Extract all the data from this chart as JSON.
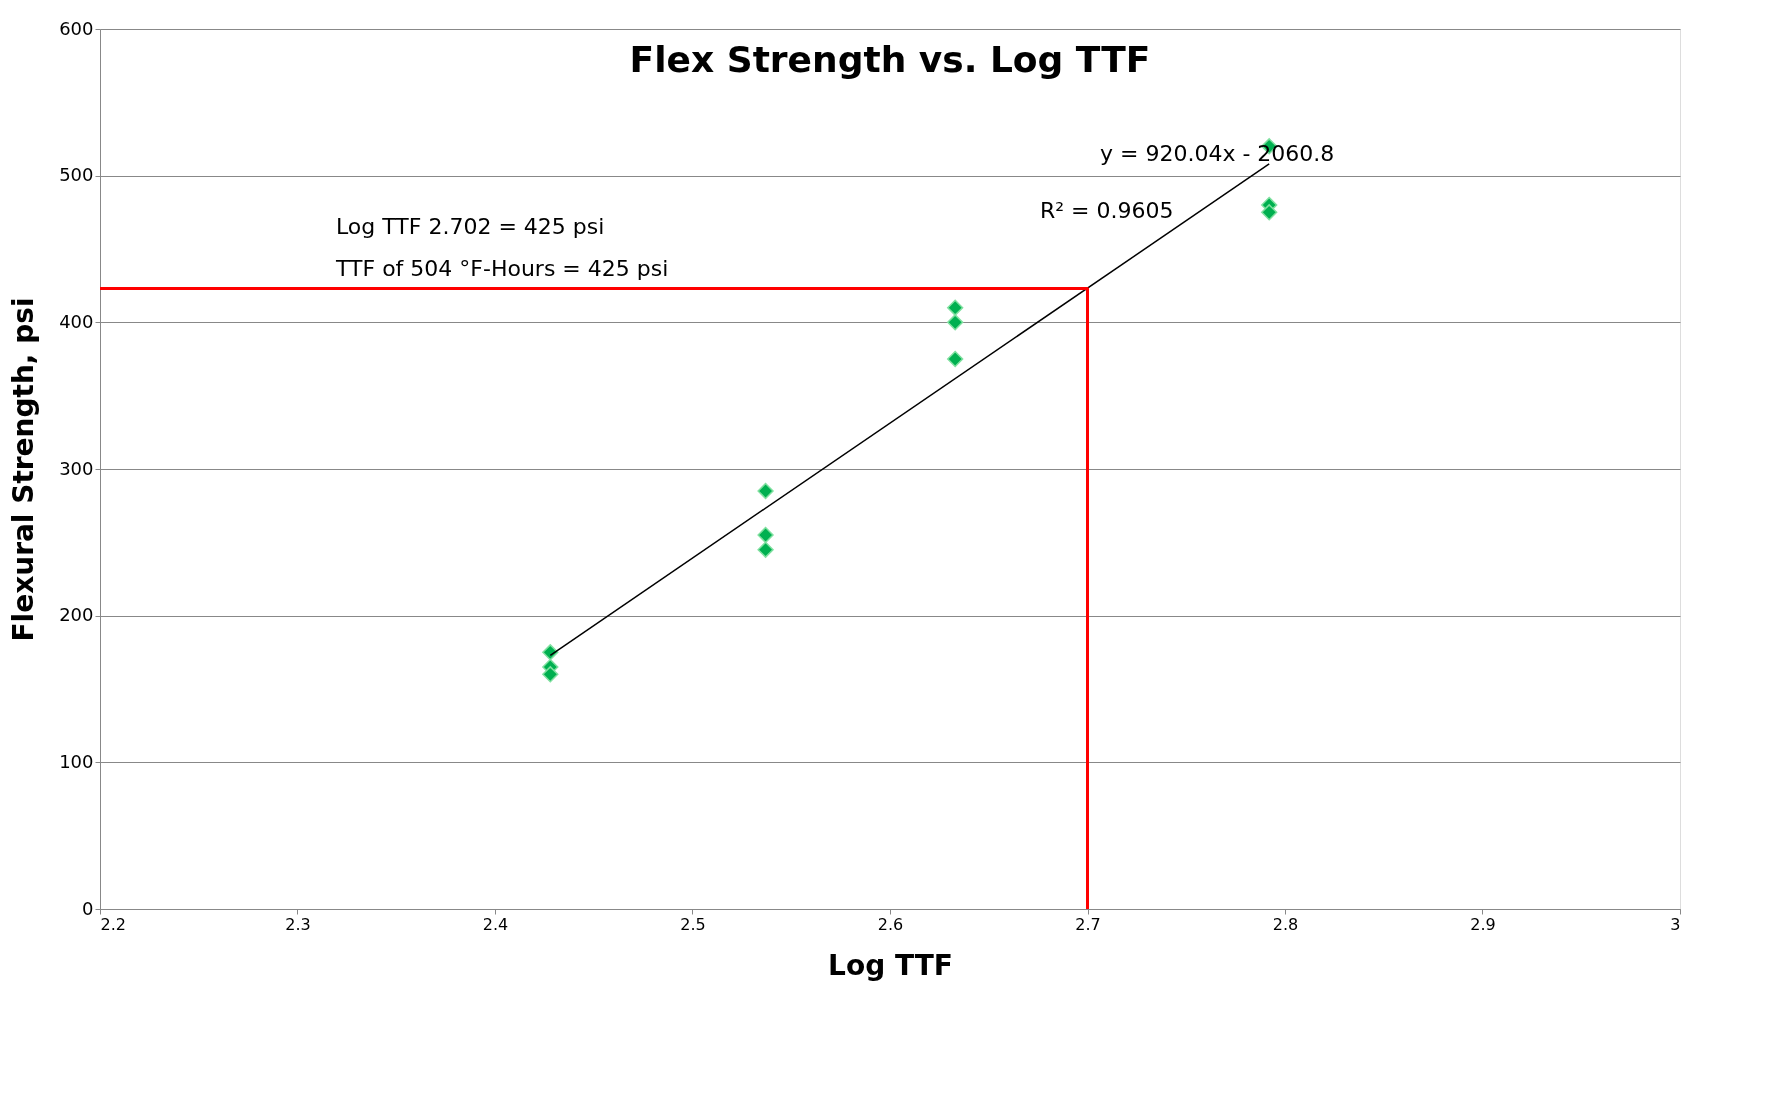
{
  "chart_data": {
    "type": "scatter",
    "title": "Flex Strength vs. Log TTF",
    "xlabel": "Log TTF",
    "ylabel": "Flexural Strength, psi",
    "xlim": [
      2.2,
      3
    ],
    "xticks": [
      2.2,
      2.3,
      2.4,
      2.5,
      2.6,
      2.7,
      2.8,
      2.9,
      3
    ],
    "ylim": [
      0,
      600
    ],
    "yticks": [
      0,
      100,
      200,
      300,
      400,
      500,
      600
    ],
    "grid": "y",
    "marker": "diamond",
    "series": [
      {
        "color": "#00b050",
        "x": [
          2.428,
          2.428,
          2.428,
          2.537,
          2.537,
          2.537,
          2.633,
          2.633,
          2.633,
          2.792,
          2.792,
          2.792
        ],
        "values": [
          175,
          165,
          160,
          285,
          255,
          245,
          410,
          400,
          375,
          520,
          480,
          475
        ]
      },
      {
        "type": "line",
        "marker": "none",
        "color": "#000000",
        "x": [
          2.428,
          2.792
        ],
        "values": [
          173,
          508
        ]
      },
      {
        "type": "line",
        "marker": "none",
        "color": "#ff0000",
        "x": [
          2.2,
          2.7,
          2.7
        ],
        "values": [
          423,
          423,
          0
        ]
      }
    ],
    "annotations": [
      "y = 920.04x - 2060.8",
      "R² = 0.9605",
      "Log TTF 2.702 = 425 psi",
      "TTF of 504 °F-Hours =  425 psi"
    ]
  }
}
